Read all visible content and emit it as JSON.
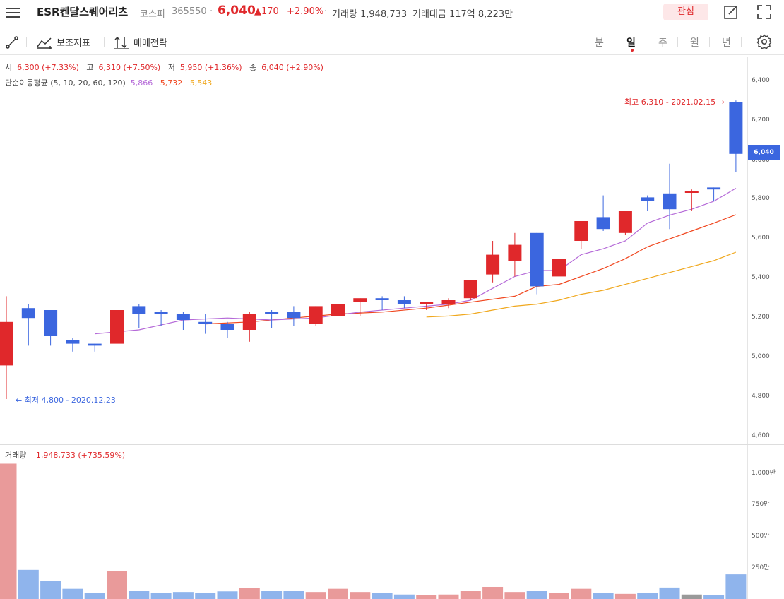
{
  "header": {
    "stock_name": "ESR켄달스퀘어리츠",
    "market": "코스피",
    "code": "365550",
    "separator": "·",
    "price": "6,040",
    "change": "▲170",
    "change_pct": "+2.90%",
    "volume_text": "거래량 1,948,733",
    "amount_text": "거래대금 117억 8,223만",
    "watch_label": "관심"
  },
  "toolbar": {
    "drawing_label": "",
    "indicator_label": "보조지표",
    "strategy_label": "매매전략",
    "periods": [
      "분",
      "일",
      "주",
      "월",
      "년"
    ],
    "active_period": "일"
  },
  "info": {
    "open_label": "시",
    "open_value": "6,300 (+7.33%)",
    "high_label": "고",
    "high_value": "6,310 (+7.50%)",
    "low_label": "저",
    "low_value": "5,950 (+1.36%)",
    "close_label": "종",
    "close_value": "6,040 (+2.90%)",
    "ma_label": "단순이동평균 (5, 10, 20, 60, 120)",
    "ma5": "5,866",
    "ma10": "5,732",
    "ma20": "5,543"
  },
  "annotations": {
    "high": "최고 6,310 - 2021.02.15 →",
    "low": "← 최저 4,800 - 2020.12.23"
  },
  "price_tag": "6,040",
  "volume_panel": {
    "title": "거래량",
    "value": "1,948,733 (+735.59%)"
  },
  "colors": {
    "up": "#e0282b",
    "down": "#3b66df",
    "vol_up": "#e99a9a",
    "vol_down": "#8fb4ec",
    "vol_flat": "#999999",
    "ma5": "#b56ad8",
    "ma10": "#f0461e",
    "ma20": "#f0a81e"
  },
  "chart_data": {
    "type": "candlestick",
    "price_axis": {
      "ticks": [
        "4,600",
        "4,800",
        "5,000",
        "5,200",
        "5,400",
        "5,600",
        "5,800",
        "6,000",
        "6,200",
        "6,400"
      ],
      "ylim": [
        4600,
        6460
      ]
    },
    "volume_axis": {
      "ticks": [
        "250만",
        "500만",
        "750만",
        "1,000만"
      ],
      "ylim": [
        0,
        11000000
      ]
    },
    "candles": [
      {
        "o": 4970,
        "h": 5320,
        "l": 4800,
        "c": 5190,
        "v": 10700000
      },
      {
        "o": 5260,
        "h": 5280,
        "l": 5070,
        "c": 5210,
        "v": 2300000
      },
      {
        "o": 5250,
        "h": 5250,
        "l": 5070,
        "c": 5120,
        "v": 1400000
      },
      {
        "o": 5100,
        "h": 5110,
        "l": 5040,
        "c": 5080,
        "v": 800000
      },
      {
        "o": 5080,
        "h": 5080,
        "l": 5040,
        "c": 5070,
        "v": 450000
      },
      {
        "o": 5080,
        "h": 5260,
        "l": 5070,
        "c": 5250,
        "v": 2200000
      },
      {
        "o": 5270,
        "h": 5280,
        "l": 5160,
        "c": 5230,
        "v": 650000
      },
      {
        "o": 5240,
        "h": 5250,
        "l": 5170,
        "c": 5230,
        "v": 500000
      },
      {
        "o": 5230,
        "h": 5240,
        "l": 5150,
        "c": 5200,
        "v": 550000
      },
      {
        "o": 5190,
        "h": 5230,
        "l": 5130,
        "c": 5180,
        "v": 500000
      },
      {
        "o": 5180,
        "h": 5190,
        "l": 5110,
        "c": 5150,
        "v": 600000
      },
      {
        "o": 5150,
        "h": 5240,
        "l": 5090,
        "c": 5230,
        "v": 850000
      },
      {
        "o": 5240,
        "h": 5250,
        "l": 5160,
        "c": 5230,
        "v": 650000
      },
      {
        "o": 5240,
        "h": 5270,
        "l": 5170,
        "c": 5210,
        "v": 650000
      },
      {
        "o": 5180,
        "h": 5270,
        "l": 5170,
        "c": 5270,
        "v": 550000
      },
      {
        "o": 5220,
        "h": 5290,
        "l": 5220,
        "c": 5280,
        "v": 800000
      },
      {
        "o": 5290,
        "h": 5310,
        "l": 5220,
        "c": 5310,
        "v": 550000
      },
      {
        "o": 5310,
        "h": 5320,
        "l": 5250,
        "c": 5300,
        "v": 450000
      },
      {
        "o": 5300,
        "h": 5320,
        "l": 5260,
        "c": 5280,
        "v": 350000
      },
      {
        "o": 5280,
        "h": 5290,
        "l": 5250,
        "c": 5290,
        "v": 300000
      },
      {
        "o": 5280,
        "h": 5310,
        "l": 5260,
        "c": 5300,
        "v": 350000
      },
      {
        "o": 5310,
        "h": 5390,
        "l": 5300,
        "c": 5400,
        "v": 650000
      },
      {
        "o": 5430,
        "h": 5600,
        "l": 5390,
        "c": 5530,
        "v": 950000
      },
      {
        "o": 5500,
        "h": 5640,
        "l": 5420,
        "c": 5580,
        "v": 550000
      },
      {
        "o": 5640,
        "h": 5640,
        "l": 5330,
        "c": 5370,
        "v": 650000
      },
      {
        "o": 5420,
        "h": 5510,
        "l": 5340,
        "c": 5510,
        "v": 500000
      },
      {
        "o": 5600,
        "h": 5700,
        "l": 5560,
        "c": 5700,
        "v": 800000
      },
      {
        "o": 5720,
        "h": 5830,
        "l": 5650,
        "c": 5660,
        "v": 450000
      },
      {
        "o": 5640,
        "h": 5750,
        "l": 5630,
        "c": 5750,
        "v": 400000
      },
      {
        "o": 5820,
        "h": 5830,
        "l": 5750,
        "c": 5800,
        "v": 450000
      },
      {
        "o": 5840,
        "h": 5990,
        "l": 5660,
        "c": 5760,
        "v": 900000
      },
      {
        "o": 5850,
        "h": 5860,
        "l": 5750,
        "c": 5850,
        "v": 350000
      },
      {
        "o": 5870,
        "h": 5870,
        "l": 5800,
        "c": 5860,
        "v": 300000
      },
      {
        "o": 6300,
        "h": 6310,
        "l": 5950,
        "c": 6040,
        "v": 1948733
      }
    ],
    "flat_volume_index": 31,
    "ma5": [
      [
        4,
        5130
      ],
      [
        6,
        5150
      ],
      [
        8,
        5200
      ],
      [
        10,
        5210
      ],
      [
        12,
        5200
      ],
      [
        14,
        5210
      ],
      [
        16,
        5240
      ],
      [
        18,
        5260
      ],
      [
        20,
        5280
      ],
      [
        21,
        5300
      ],
      [
        22,
        5360
      ],
      [
        23,
        5420
      ],
      [
        24,
        5450
      ],
      [
        25,
        5450
      ],
      [
        26,
        5530
      ],
      [
        27,
        5560
      ],
      [
        28,
        5600
      ],
      [
        29,
        5690
      ],
      [
        30,
        5730
      ],
      [
        31,
        5760
      ],
      [
        32,
        5800
      ],
      [
        33,
        5866
      ]
    ],
    "ma10": [
      [
        9,
        5180
      ],
      [
        11,
        5190
      ],
      [
        13,
        5210
      ],
      [
        15,
        5230
      ],
      [
        17,
        5240
      ],
      [
        19,
        5260
      ],
      [
        21,
        5290
      ],
      [
        23,
        5320
      ],
      [
        24,
        5370
      ],
      [
        25,
        5380
      ],
      [
        26,
        5420
      ],
      [
        27,
        5460
      ],
      [
        28,
        5510
      ],
      [
        29,
        5570
      ],
      [
        30,
        5610
      ],
      [
        31,
        5650
      ],
      [
        32,
        5690
      ],
      [
        33,
        5732
      ]
    ],
    "ma20": [
      [
        19,
        5215
      ],
      [
        20,
        5220
      ],
      [
        21,
        5230
      ],
      [
        22,
        5250
      ],
      [
        23,
        5270
      ],
      [
        24,
        5280
      ],
      [
        25,
        5300
      ],
      [
        26,
        5330
      ],
      [
        27,
        5350
      ],
      [
        28,
        5380
      ],
      [
        29,
        5410
      ],
      [
        30,
        5440
      ],
      [
        31,
        5470
      ],
      [
        32,
        5500
      ],
      [
        33,
        5543
      ]
    ]
  }
}
